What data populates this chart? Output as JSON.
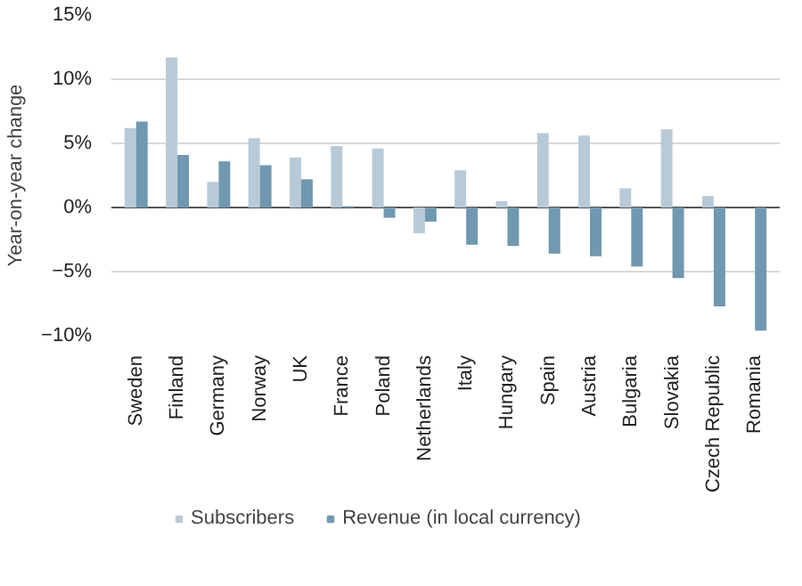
{
  "chart_data": {
    "type": "bar",
    "ylabel": "Year-on-year change",
    "categories": [
      "Sweden",
      "Finland",
      "Germany",
      "Norway",
      "UK",
      "France",
      "Poland",
      "Netherlands",
      "Italy",
      "Hungary",
      "Spain",
      "Austria",
      "Bulgaria",
      "Slovakia",
      "Czech Republic",
      "Romania"
    ],
    "series": [
      {
        "name": "Subscribers",
        "color": "#b8cad8",
        "values": [
          6.2,
          11.7,
          2.0,
          5.4,
          3.9,
          4.8,
          4.6,
          -2.0,
          2.9,
          0.5,
          5.8,
          5.6,
          1.5,
          6.1,
          0.9,
          0.0
        ]
      },
      {
        "name": "Revenue (in local currency)",
        "color": "#7098b0",
        "values": [
          6.7,
          4.1,
          3.6,
          3.3,
          2.2,
          0.1,
          -0.8,
          -1.1,
          -2.9,
          -3.0,
          -3.6,
          -3.8,
          -4.6,
          -5.5,
          -7.7,
          -9.6
        ]
      }
    ],
    "ylim": [
      -10,
      15
    ],
    "yticks": [
      {
        "value": -10,
        "label": "−10%"
      },
      {
        "value": -5,
        "label": "−5%"
      },
      {
        "value": 0,
        "label": "0%"
      },
      {
        "value": 5,
        "label": "5%"
      },
      {
        "value": 10,
        "label": "10%"
      },
      {
        "value": 15,
        "label": "15%"
      }
    ],
    "grid": "y",
    "legend": "bottom"
  }
}
